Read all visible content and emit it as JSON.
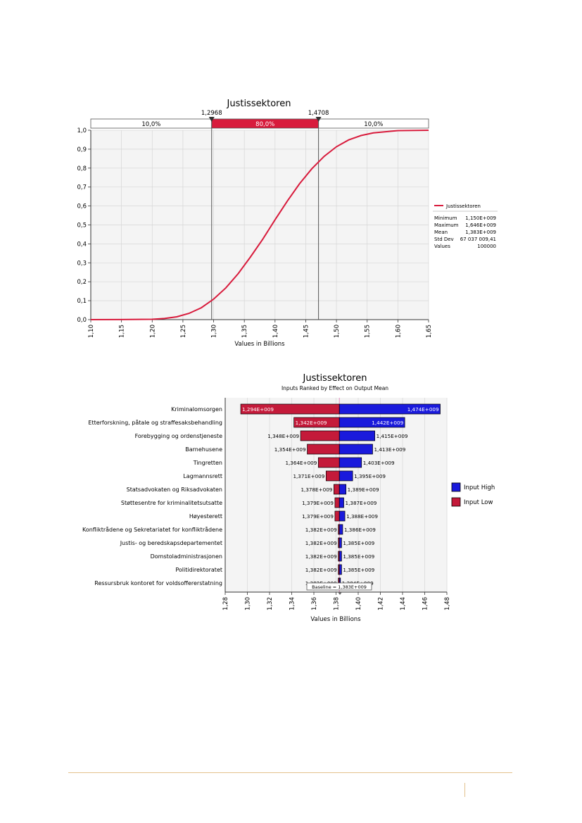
{
  "chart_data": [
    {
      "type": "line",
      "title": "Justissektoren",
      "xlabel": "Values in Billions",
      "ylabel": "",
      "xlim": [
        1.1,
        1.65
      ],
      "ylim": [
        0.0,
        1.0
      ],
      "x_ticks": [
        "1,10",
        "1,15",
        "1,20",
        "1,25",
        "1,30",
        "1,35",
        "1,40",
        "1,45",
        "1,50",
        "1,55",
        "1,60",
        "1,65"
      ],
      "y_ticks": [
        "0,0",
        "0,1",
        "0,2",
        "0,3",
        "0,4",
        "0,5",
        "0,6",
        "0,7",
        "0,8",
        "0,9",
        "1,0"
      ],
      "grid": true,
      "delimiters": [
        {
          "x": 1.2968,
          "label": "1,2968"
        },
        {
          "x": 1.4708,
          "label": "1,4708"
        }
      ],
      "probability_bands": [
        "10,0%",
        "80,0%",
        "10,0%"
      ],
      "series": [
        {
          "name": "Justissektoren",
          "color": "#d81b3c",
          "x": [
            1.1,
            1.15,
            1.2,
            1.22,
            1.24,
            1.26,
            1.28,
            1.3,
            1.32,
            1.34,
            1.36,
            1.38,
            1.4,
            1.42,
            1.44,
            1.46,
            1.48,
            1.5,
            1.52,
            1.54,
            1.56,
            1.6,
            1.65
          ],
          "y": [
            0.0,
            0.0005,
            0.002,
            0.006,
            0.015,
            0.033,
            0.063,
            0.108,
            0.168,
            0.243,
            0.331,
            0.425,
            0.527,
            0.626,
            0.718,
            0.797,
            0.862,
            0.913,
            0.949,
            0.972,
            0.986,
            0.998,
            1.0
          ]
        }
      ],
      "legend_position": "right",
      "stats": [
        {
          "label": "Minimum",
          "value": "1,150E+009"
        },
        {
          "label": "Maximum",
          "value": "1,646E+009"
        },
        {
          "label": "Mean",
          "value": "1,383E+009"
        },
        {
          "label": "Std Dev",
          "value": "67 037 009,41"
        },
        {
          "label": "Values",
          "value": "100000"
        }
      ]
    },
    {
      "type": "bar",
      "orientation": "tornado",
      "title": "Justissektoren",
      "subtitle": "Inputs Ranked by Effect on Output Mean",
      "xlabel": "Values in Billions",
      "xlim": [
        1.28,
        1.48
      ],
      "x_ticks": [
        "1,28",
        "1,30",
        "1,32",
        "1,34",
        "1,36",
        "1,38",
        "1,40",
        "1,42",
        "1,44",
        "1,46",
        "1,48"
      ],
      "baseline": 1.383,
      "baseline_label": "Baseline = 1,383E+009",
      "grid": true,
      "legend_position": "right",
      "legend": [
        {
          "name": "Input High",
          "color": "#1a1adc"
        },
        {
          "name": "Input Low",
          "color": "#c41a3a"
        }
      ],
      "categories": [
        "Kriminalomsorgen",
        "Etterforskning, påtale og straffesaksbehandling",
        "Forebygging og ordenstjeneste",
        "Barnehusene",
        "Tingretten",
        "Lagmannsrett",
        "Statsadvokaten og Riksadvokaten",
        "Støttesentre for kriminalitetsutsatte",
        "Høyesterett",
        "Konfliktrådene og Sekretariatet for konfliktrådene",
        "Justis- og beredskapsdepartementet",
        "Domstoladministrasjonen",
        "Politidirektoratet",
        "Ressursbruk kontoret for voldsoffererstatning"
      ],
      "series": [
        {
          "name": "Input Low",
          "values": [
            1.294,
            1.342,
            1.348,
            1.354,
            1.364,
            1.371,
            1.378,
            1.379,
            1.379,
            1.382,
            1.382,
            1.382,
            1.382,
            1.382
          ],
          "labels": [
            "1,294E+009",
            "1,342E+009",
            "1,348E+009",
            "1,354E+009",
            "1,364E+009",
            "1,371E+009",
            "1,378E+009",
            "1,379E+009",
            "1,379E+009",
            "1,382E+009",
            "1,382E+009",
            "1,382E+009",
            "1,382E+009",
            "1,382E+009"
          ]
        },
        {
          "name": "Input High",
          "values": [
            1.474,
            1.442,
            1.415,
            1.413,
            1.403,
            1.395,
            1.389,
            1.387,
            1.388,
            1.386,
            1.385,
            1.385,
            1.385,
            1.384
          ],
          "labels": [
            "1,474E+009",
            "1,442E+009",
            "1,415E+009",
            "1,413E+009",
            "1,403E+009",
            "1,395E+009",
            "1,389E+009",
            "1,387E+009",
            "1,388E+009",
            "1,386E+009",
            "1,385E+009",
            "1,385E+009",
            "1,385E+009",
            "1,384E+009"
          ]
        }
      ]
    }
  ]
}
